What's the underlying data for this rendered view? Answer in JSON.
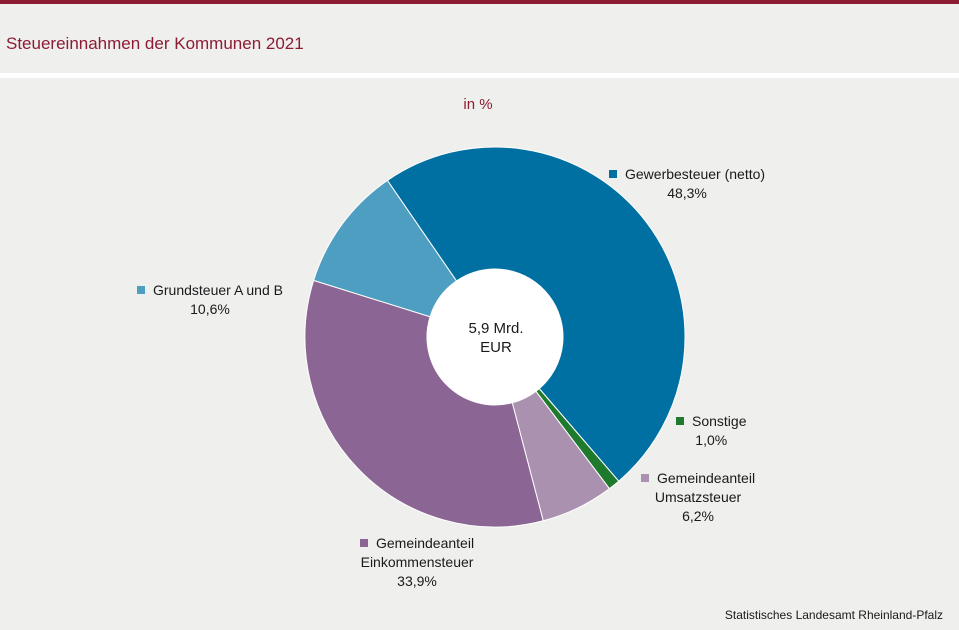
{
  "header": {
    "title": "Steuereinnahmen der Kommunen 2021"
  },
  "chart_data": {
    "type": "pie",
    "subtitle": "in %",
    "center_label": [
      "5,9 Mrd.",
      "EUR"
    ],
    "slices": [
      {
        "key": "gewerbesteuer",
        "name": [
          "Gewerbesteuer (netto)"
        ],
        "value": 48.3,
        "value_label": "48,3%",
        "color": "#0070a3"
      },
      {
        "key": "sonstige",
        "name": [
          "Sonstige"
        ],
        "value": 1.0,
        "value_label": "1,0%",
        "color": "#1f7a2e"
      },
      {
        "key": "umsatzsteuer",
        "name": [
          "Gemeindeanteil",
          "Umsatzsteuer"
        ],
        "value": 6.2,
        "value_label": "6,2%",
        "color": "#ab91b0"
      },
      {
        "key": "einkommensteuer",
        "name": [
          "Gemeindeanteil",
          "Einkommensteuer"
        ],
        "value": 33.9,
        "value_label": "33,9%",
        "color": "#8b6593"
      },
      {
        "key": "grundsteuer",
        "name": [
          "Grundsteuer A und B"
        ],
        "value": 10.6,
        "value_label": "10,6%",
        "color": "#4d9ec0"
      }
    ]
  },
  "footer": {
    "source": "Statistisches Landesamt Rheinland-Pfalz"
  }
}
